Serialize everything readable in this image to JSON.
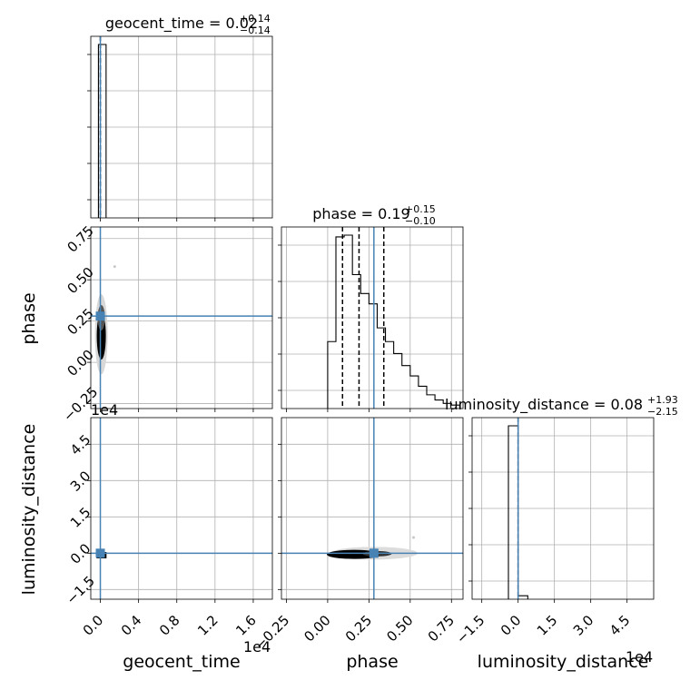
{
  "chart_data": {
    "type": "corner",
    "grid": true,
    "title_var": {
      "geocent_time": {
        "name": "geocent_time",
        "median": "0.02",
        "plus": "+0.14",
        "minus": "−0.14"
      },
      "phase": {
        "name": "phase",
        "median": "0.19",
        "plus": "+0.15",
        "minus": "−0.10"
      },
      "luminosity_distance": {
        "name": "luminosity_distance",
        "median": "0.08",
        "plus": "+1.93",
        "minus": "−2.15"
      }
    },
    "labels": {
      "geocent_time": "geocent_time",
      "phase": "phase",
      "luminosity_distance": "luminosity_distance"
    },
    "scale_notes": {
      "geocent_time": "1e4",
      "luminosity_distance_y": "1e4",
      "luminosity_distance_x": "1e4"
    },
    "axes": {
      "geocent_time": {
        "range": [
          -0.1,
          1.8
        ],
        "ticks": [
          0.0,
          0.4,
          0.8,
          1.2,
          1.6
        ],
        "tick_labels": [
          "0.0",
          "0.4",
          "0.8",
          "1.2",
          "1.6"
        ]
      },
      "phase": {
        "range": [
          -0.28,
          0.82
        ],
        "ticks": [
          -0.25,
          0.0,
          0.25,
          0.5,
          0.75
        ],
        "tick_labels": [
          "−0.25",
          "0.00",
          "0.25",
          "0.50",
          "0.75"
        ]
      },
      "luminosity_distance": {
        "range": [
          -1.9,
          5.6
        ],
        "ticks": [
          -1.5,
          0.0,
          1.5,
          3.0,
          4.5
        ],
        "tick_labels": [
          "−1.5",
          "0.0",
          "1.5",
          "3.0",
          "4.5"
        ]
      }
    },
    "truths": {
      "geocent_time": 0.0,
      "phase": 0.28,
      "luminosity_distance": 0.0
    },
    "quantile_lines": {
      "geocent_time": [
        0.0
      ],
      "phase": [
        0.09,
        0.19,
        0.34
      ],
      "luminosity_distance": [
        0.0
      ]
    },
    "histograms": {
      "geocent_time": {
        "edges": [
          -0.02,
          0.06
        ],
        "counts": [
          1.0
        ]
      },
      "phase": {
        "edges": [
          0.0,
          0.05,
          0.1,
          0.15,
          0.2,
          0.25,
          0.3,
          0.35,
          0.4,
          0.45,
          0.5,
          0.55,
          0.6,
          0.65,
          0.7,
          0.75,
          0.8
        ],
        "counts": [
          0.39,
          1.0,
          1.01,
          0.78,
          0.67,
          0.61,
          0.47,
          0.39,
          0.32,
          0.25,
          0.19,
          0.13,
          0.08,
          0.05,
          0.03,
          0.02
        ]
      },
      "luminosity_distance": {
        "edges": [
          -0.4,
          0.0,
          0.4
        ],
        "counts": [
          1.0,
          0.02
        ]
      }
    }
  }
}
